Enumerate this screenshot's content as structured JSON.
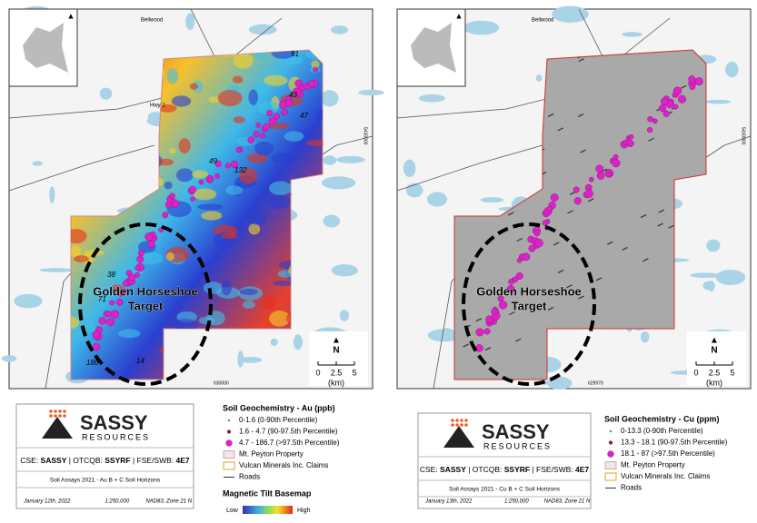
{
  "maps": [
    {
      "north": "N",
      "scale": [
        "0",
        "2.5",
        "5"
      ],
      "scale_unit": "(km)",
      "coord_y": "5430000",
      "coord_x": "630000",
      "place_labels": [
        "Bellwood",
        "Hwy 1"
      ],
      "sample_labels": [
        "91",
        "43",
        "47",
        "49",
        "132",
        "38",
        "71",
        "186",
        "14"
      ],
      "target_label": [
        "Golden Horseshoe",
        "Target"
      ],
      "info": {
        "logo": "SASSY",
        "logo_sub": "RESOURCES",
        "listing": [
          {
            "text": "CSE: ",
            "bold": false
          },
          {
            "text": "SASSY",
            "bold": true
          },
          {
            "text": " | OTCQB: ",
            "bold": false
          },
          {
            "text": "SSYRF",
            "bold": true
          },
          {
            "text": " | FSE/SWB: ",
            "bold": false
          },
          {
            "text": "4E7",
            "bold": true
          }
        ],
        "caption": "Soil Assays 2021 - Au B + C Soil Horizons",
        "date": "January 12th, 2022",
        "scale": "1:250,000",
        "datum": "NAD83, Zone 21 N"
      },
      "legend": {
        "title": "Soil Geochemistry - Au (ppb)",
        "items": [
          "0-1.6 (0-90th Percentile)",
          "1.6 - 4.7 (90-97.5th Percentile)",
          "4.7 - 186.7 (>97.5th Percentile)",
          "Mt. Peyton Property",
          "Vulcan Minerals Inc. Claims",
          "Roads"
        ],
        "basemap_title": "Magnetic Tilt Basemap",
        "low": "Low",
        "high": "High"
      }
    },
    {
      "north": "N",
      "scale": [
        "0",
        "2.5",
        "5"
      ],
      "scale_unit": "(km)",
      "coord_y": "5430000",
      "coord_x": "629979",
      "place_labels": [
        "Bellwood"
      ],
      "sample_labels": [],
      "target_label": [
        "Golden Horseshoe",
        "Target"
      ],
      "info": {
        "logo": "SASSY",
        "logo_sub": "RESOURCES",
        "listing": [
          {
            "text": "CSE: ",
            "bold": false
          },
          {
            "text": "SASSY",
            "bold": true
          },
          {
            "text": " | OTCQB: ",
            "bold": false
          },
          {
            "text": "SSYRF",
            "bold": true
          },
          {
            "text": " | FSE/SWB: ",
            "bold": false
          },
          {
            "text": "4E7",
            "bold": true
          }
        ],
        "caption": "Soil Assays 2021 - Cu B + C Soil Horizons",
        "date": "January 13th, 2022",
        "scale": "1:250,000",
        "datum": "NAD83, Zone 21 N"
      },
      "legend": {
        "title": "Soil Geochemistry - Cu (ppm)",
        "items": [
          "0-13.3 (0-90th Percentile)",
          "13.3 - 18.1 (90-97.5th Percentile)",
          "18.1 - 87 (>97.5th Percentile)",
          "Mt. Peyton Property",
          "Vulcan Minerals Inc. Claims",
          "Roads"
        ]
      }
    }
  ]
}
